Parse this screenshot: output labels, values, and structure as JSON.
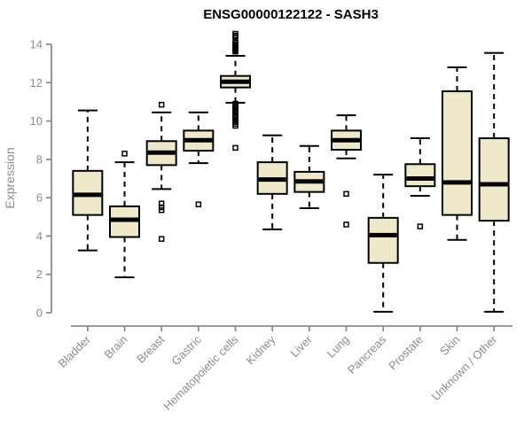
{
  "colors": {
    "box_fill": "#EFE8CB",
    "box_stroke": "#000000",
    "median": "#000000",
    "axis": "#878787",
    "tick_label": "#8C8C8C",
    "title": "#000000",
    "background": "#FFFFFF"
  },
  "chart_data": {
    "type": "boxplot",
    "title": "ENSG00000122122 - SASH3",
    "xlabel": "",
    "ylabel": "Expression",
    "ylim": [
      0,
      14
    ],
    "yticks": [
      0,
      2,
      4,
      6,
      8,
      10,
      12,
      14
    ],
    "grid": false,
    "legend": "none",
    "categories": [
      "Bladder",
      "Brain",
      "Breast",
      "Gastric",
      "Hematopoietic cells",
      "Kidney",
      "Liver",
      "Lung",
      "Pancreas",
      "Prostate",
      "Skin",
      "Unknown / Other"
    ],
    "series": [
      {
        "name": "Bladder",
        "whisker_low": 3.25,
        "q1": 5.1,
        "median": 6.15,
        "q3": 7.4,
        "whisker_high": 10.55,
        "outliers": []
      },
      {
        "name": "Brain",
        "whisker_low": 1.85,
        "q1": 3.95,
        "median": 4.85,
        "q3": 5.55,
        "whisker_high": 7.85,
        "outliers": [
          8.3
        ]
      },
      {
        "name": "Breast",
        "whisker_low": 6.45,
        "q1": 7.7,
        "median": 8.35,
        "q3": 8.95,
        "whisker_high": 10.45,
        "outliers": [
          10.85,
          5.7,
          5.5,
          5.35,
          3.85
        ]
      },
      {
        "name": "Gastric",
        "whisker_low": 7.8,
        "q1": 8.45,
        "median": 9.0,
        "q3": 9.5,
        "whisker_high": 10.45,
        "outliers": [
          5.65
        ]
      },
      {
        "name": "Hematopoietic cells",
        "whisker_low": 10.95,
        "q1": 11.75,
        "median": 12.05,
        "q3": 12.35,
        "whisker_high": 13.4,
        "outliers": [
          14.55,
          14.45,
          14.4,
          14.1,
          14.02,
          13.95,
          13.88,
          13.8,
          13.74,
          13.68,
          13.62,
          10.9,
          10.82,
          10.75,
          10.68,
          10.6,
          10.52,
          10.45,
          10.38,
          10.3,
          10.22,
          10.15,
          10.05,
          9.95,
          9.85,
          9.75,
          8.6
        ]
      },
      {
        "name": "Kidney",
        "whisker_low": 4.35,
        "q1": 6.2,
        "median": 6.95,
        "q3": 7.85,
        "whisker_high": 9.25,
        "outliers": []
      },
      {
        "name": "Liver",
        "whisker_low": 5.45,
        "q1": 6.3,
        "median": 6.85,
        "q3": 7.35,
        "whisker_high": 8.7,
        "outliers": []
      },
      {
        "name": "Lung",
        "whisker_low": 8.05,
        "q1": 8.5,
        "median": 9.0,
        "q3": 9.5,
        "whisker_high": 10.3,
        "outliers": [
          6.2,
          4.6
        ]
      },
      {
        "name": "Pancreas",
        "whisker_low": 0.05,
        "q1": 2.6,
        "median": 4.05,
        "q3": 4.95,
        "whisker_high": 7.2,
        "outliers": []
      },
      {
        "name": "Prostate",
        "whisker_low": 6.1,
        "q1": 6.6,
        "median": 7.0,
        "q3": 7.75,
        "whisker_high": 9.1,
        "outliers": [
          4.5
        ]
      },
      {
        "name": "Skin",
        "whisker_low": 3.8,
        "q1": 5.1,
        "median": 6.8,
        "q3": 11.55,
        "whisker_high": 12.8,
        "outliers": []
      },
      {
        "name": "Unknown / Other",
        "whisker_low": 0.05,
        "q1": 4.8,
        "median": 6.7,
        "q3": 9.1,
        "whisker_high": 13.55,
        "outliers": []
      }
    ]
  }
}
